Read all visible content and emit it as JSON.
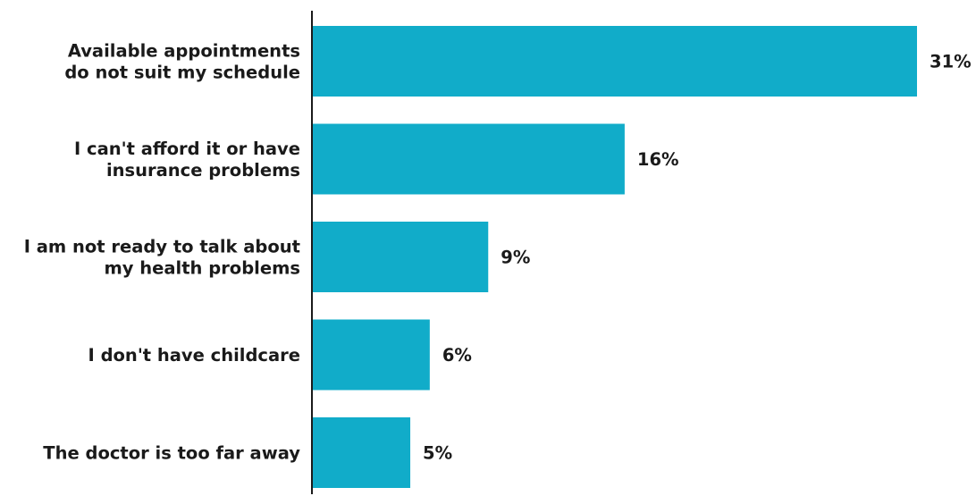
{
  "chart_data": {
    "type": "bar",
    "orientation": "horizontal",
    "categories": [
      [
        "Available appointments",
        "do not suit my schedule"
      ],
      [
        "I can't afford it or have",
        "insurance problems"
      ],
      [
        "I am not ready to talk about",
        "my health problems"
      ],
      [
        "I don't have childcare"
      ],
      [
        "The doctor is too far away"
      ]
    ],
    "values": [
      31,
      16,
      9,
      6,
      5
    ],
    "value_labels": [
      "31%",
      "16%",
      "9%",
      "6%",
      "5%"
    ],
    "unit": "%",
    "xlim": [
      0,
      31
    ],
    "bar_color": "#11acc9",
    "axis_color": "#1a1a1a",
    "grid": false,
    "legend": "none"
  }
}
